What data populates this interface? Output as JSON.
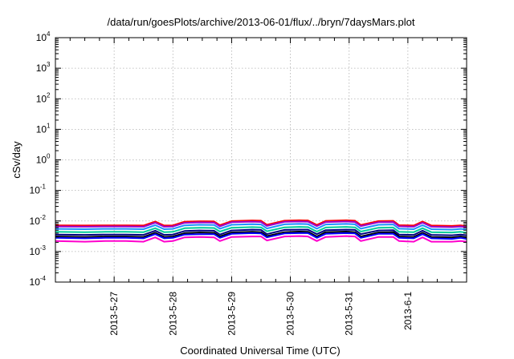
{
  "chart_data": {
    "type": "line",
    "title": "/data/run/goesPlots/archive/2013-06-01/flux/../bryn/7daysMars.plot",
    "xlabel": "Coordinated Universal Time (UTC)",
    "ylabel": "cSv/day",
    "y_scale": "log",
    "ylim": [
      0.0001,
      10000
    ],
    "y_ticks": [
      {
        "base": "10",
        "exp": "4"
      },
      {
        "base": "10",
        "exp": "3"
      },
      {
        "base": "10",
        "exp": "2"
      },
      {
        "base": "10",
        "exp": "1"
      },
      {
        "base": "10",
        "exp": "0"
      },
      {
        "base": "10",
        "exp": "-1"
      },
      {
        "base": "10",
        "exp": "-2"
      },
      {
        "base": "10",
        "exp": "-3"
      },
      {
        "base": "10",
        "exp": "-4"
      }
    ],
    "xlim": [
      "2013-05-26 00:00",
      "2013-06-02 00:00"
    ],
    "x_ticks": [
      "2013-5-27",
      "2013-5-28",
      "2013-5-29",
      "2013-5-30",
      "2013-5-31",
      "2013-6-1"
    ],
    "x_tick_positions_days": [
      1,
      2,
      3,
      4,
      5,
      6
    ],
    "grid": true,
    "legend": "none",
    "x": [
      0,
      0.5,
      0.85,
      1.2,
      1.5,
      1.7,
      1.85,
      2.0,
      2.2,
      2.45,
      2.7,
      2.8,
      3.0,
      3.35,
      3.5,
      3.6,
      3.9,
      4.15,
      4.3,
      4.45,
      4.6,
      4.95,
      5.1,
      5.2,
      5.5,
      5.75,
      5.85,
      6.1,
      6.25,
      6.4,
      6.75,
      6.9,
      7.0
    ],
    "series": [
      {
        "color": "#ff0000",
        "values": [
          0.0072,
          0.0071,
          0.0072,
          0.0072,
          0.0071,
          0.0096,
          0.0071,
          0.0072,
          0.0095,
          0.0098,
          0.0097,
          0.0073,
          0.0099,
          0.0104,
          0.0102,
          0.0075,
          0.0102,
          0.0105,
          0.0104,
          0.0074,
          0.0101,
          0.0105,
          0.0102,
          0.0074,
          0.0099,
          0.0101,
          0.0073,
          0.0071,
          0.0096,
          0.0071,
          0.0069,
          0.0072,
          0.0068
        ]
      },
      {
        "color": "#9900cc",
        "values": [
          0.0066,
          0.0065,
          0.0066,
          0.0066,
          0.0065,
          0.0088,
          0.0065,
          0.0066,
          0.0087,
          0.009,
          0.0089,
          0.0067,
          0.0091,
          0.0095,
          0.0093,
          0.0069,
          0.0094,
          0.0096,
          0.0095,
          0.0068,
          0.0092,
          0.0096,
          0.0093,
          0.0068,
          0.0091,
          0.0092,
          0.0067,
          0.0065,
          0.0088,
          0.0065,
          0.0063,
          0.0066,
          0.0062
        ]
      },
      {
        "color": "#1e90ff",
        "values": [
          0.0055,
          0.0054,
          0.0055,
          0.0055,
          0.0054,
          0.0073,
          0.0054,
          0.0055,
          0.0072,
          0.0075,
          0.0074,
          0.0056,
          0.0075,
          0.0079,
          0.0077,
          0.0057,
          0.0078,
          0.008,
          0.0079,
          0.0056,
          0.0077,
          0.008,
          0.0078,
          0.0056,
          0.0075,
          0.0077,
          0.0056,
          0.0054,
          0.0073,
          0.0054,
          0.0052,
          0.0055,
          0.0052
        ]
      },
      {
        "color": "#00cc99",
        "values": [
          0.0044,
          0.0043,
          0.0044,
          0.0044,
          0.0043,
          0.0058,
          0.0043,
          0.0044,
          0.0058,
          0.006,
          0.0059,
          0.0045,
          0.006,
          0.0063,
          0.0062,
          0.0046,
          0.0062,
          0.0064,
          0.0063,
          0.0045,
          0.0061,
          0.0064,
          0.0062,
          0.0045,
          0.006,
          0.0061,
          0.0044,
          0.0043,
          0.0058,
          0.0043,
          0.0042,
          0.0044,
          0.0041
        ]
      },
      {
        "color": "#000080",
        "values": [
          0.0036,
          0.0035,
          0.0036,
          0.0036,
          0.0035,
          0.0048,
          0.0035,
          0.0036,
          0.0047,
          0.0049,
          0.0048,
          0.0036,
          0.0049,
          0.0052,
          0.0051,
          0.0037,
          0.0051,
          0.0052,
          0.0052,
          0.0037,
          0.005,
          0.0052,
          0.0051,
          0.0037,
          0.0049,
          0.005,
          0.0036,
          0.0035,
          0.0048,
          0.0035,
          0.0034,
          0.0036,
          0.0034
        ]
      },
      {
        "color": "#000000",
        "values": [
          0.0031,
          0.003,
          0.0031,
          0.0031,
          0.003,
          0.0041,
          0.003,
          0.0031,
          0.004,
          0.0042,
          0.0041,
          0.0031,
          0.0042,
          0.0044,
          0.0043,
          0.0032,
          0.0043,
          0.0045,
          0.0044,
          0.0031,
          0.0043,
          0.0045,
          0.0043,
          0.0031,
          0.0042,
          0.0043,
          0.0031,
          0.003,
          0.0041,
          0.003,
          0.0029,
          0.0031,
          0.0029
        ]
      },
      {
        "color": "#0000ff",
        "values": [
          0.0028,
          0.0027,
          0.0028,
          0.0028,
          0.0027,
          0.0037,
          0.0027,
          0.0028,
          0.0036,
          0.0037,
          0.0037,
          0.0028,
          0.0038,
          0.004,
          0.0039,
          0.0029,
          0.0039,
          0.004,
          0.004,
          0.0028,
          0.0038,
          0.004,
          0.0039,
          0.0028,
          0.0038,
          0.0038,
          0.0028,
          0.0027,
          0.0037,
          0.0027,
          0.0026,
          0.0028,
          0.0026
        ]
      },
      {
        "color": "#ff00cc",
        "values": [
          0.0022,
          0.0021,
          0.0022,
          0.0022,
          0.0021,
          0.0029,
          0.0021,
          0.0022,
          0.0029,
          0.003,
          0.0029,
          0.0022,
          0.003,
          0.0031,
          0.0031,
          0.0023,
          0.0031,
          0.0032,
          0.0031,
          0.0022,
          0.003,
          0.0032,
          0.0031,
          0.0022,
          0.003,
          0.003,
          0.0022,
          0.0021,
          0.0029,
          0.0021,
          0.0021,
          0.0022,
          0.0021
        ]
      }
    ]
  }
}
